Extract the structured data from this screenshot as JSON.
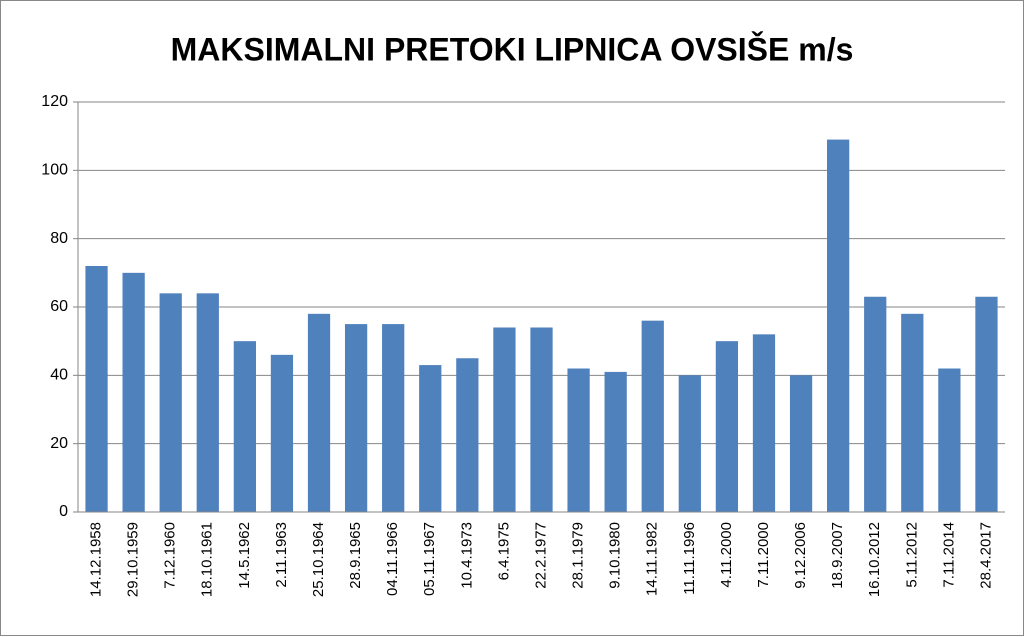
{
  "chart_data": {
    "type": "bar",
    "title": "MAKSIMALNI PRETOKI LIPNICA OVSIŠE m/s",
    "categories": [
      "14.12.1958",
      "29.10.1959",
      "7.12.1960",
      "18.10.1961",
      "14.5.1962",
      "2.11.1963",
      "25.10.1964",
      "28.9.1965",
      "04.11.1966",
      "05.11.1967",
      "10.4.1973",
      "6.4.1975",
      "22.2.1977",
      "28.1.1979",
      "9.10.1980",
      "14.11.1982",
      "11.11.1996",
      "4.11.2000",
      "7.11.2000",
      "9.12.2006",
      "18.9.2007",
      "16.10.2012",
      "5.11.2012",
      "7.11.2014",
      "28.4.2017"
    ],
    "values": [
      72,
      70,
      64,
      64,
      50,
      46,
      58,
      55,
      55,
      43,
      45,
      54,
      54,
      42,
      41,
      56,
      40,
      50,
      52,
      40,
      109,
      63,
      58,
      42,
      63
    ],
    "color": "#4f81bd",
    "ylim": [
      0,
      120
    ],
    "yticks": [
      0,
      20,
      40,
      60,
      80,
      100,
      120
    ],
    "grid": true
  }
}
